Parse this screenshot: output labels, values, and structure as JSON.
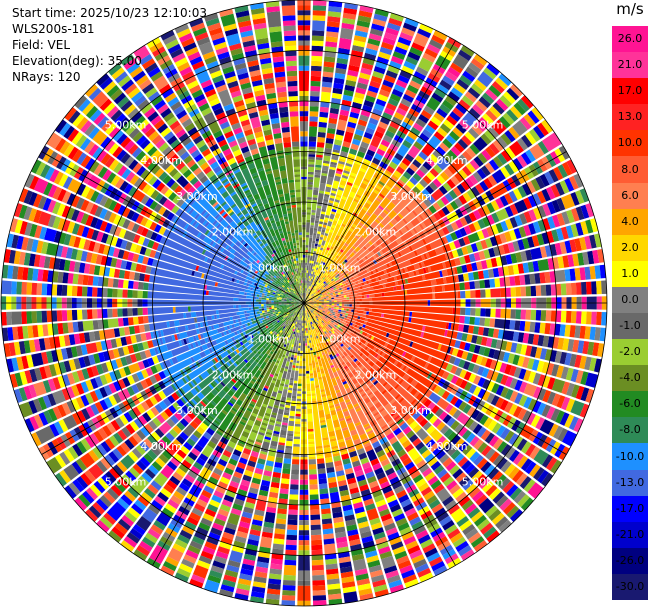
{
  "info": {
    "start_time": "Start time: 2025/10/23 12:10:03",
    "station": "WLS200s-181",
    "field": "Field: VEL",
    "elevation": "Elevation(deg): 35.00",
    "nrays": "NRays: 120"
  },
  "chart_data": {
    "type": "heatmap",
    "projection": "polar-ppi",
    "field": "VEL",
    "unit": "m/s",
    "elevation_deg": 35.0,
    "n_rays": 120,
    "max_range_km": 6.0,
    "range_rings_km": [
      1,
      2,
      3,
      4,
      5,
      6
    ],
    "range_ring_labels": [
      "1.00km",
      "2.00km",
      "3.00km",
      "4.00km",
      "5.00km"
    ],
    "coherent_range_km": 3.1,
    "velocity_pattern": "positive (receding) to the east, negative (approaching) to the west, noisy beyond ~3 km",
    "colorbar": {
      "labels": [
        "26.0",
        "21.0",
        "17.0",
        "13.0",
        "10.0",
        "8.0",
        "6.0",
        "4.0",
        "2.0",
        "1.0",
        "0.0",
        "-1.0",
        "-2.0",
        "-4.0",
        "-6.0",
        "-8.0",
        "-10.0",
        "-13.0",
        "-17.0",
        "-21.0",
        "-26.0",
        "-30.0"
      ],
      "colors": [
        "#ff1493",
        "#ff3399",
        "#ff0000",
        "#ff2222",
        "#ff3300",
        "#ff5c33",
        "#ff7f50",
        "#ffa500",
        "#ffd700",
        "#ffff00",
        "#808080",
        "#696969",
        "#9acd32",
        "#6b8e23",
        "#228b22",
        "#2e8b57",
        "#1e90ff",
        "#4169e1",
        "#0000ff",
        "#0000cd",
        "#000080",
        "#191970"
      ]
    }
  }
}
